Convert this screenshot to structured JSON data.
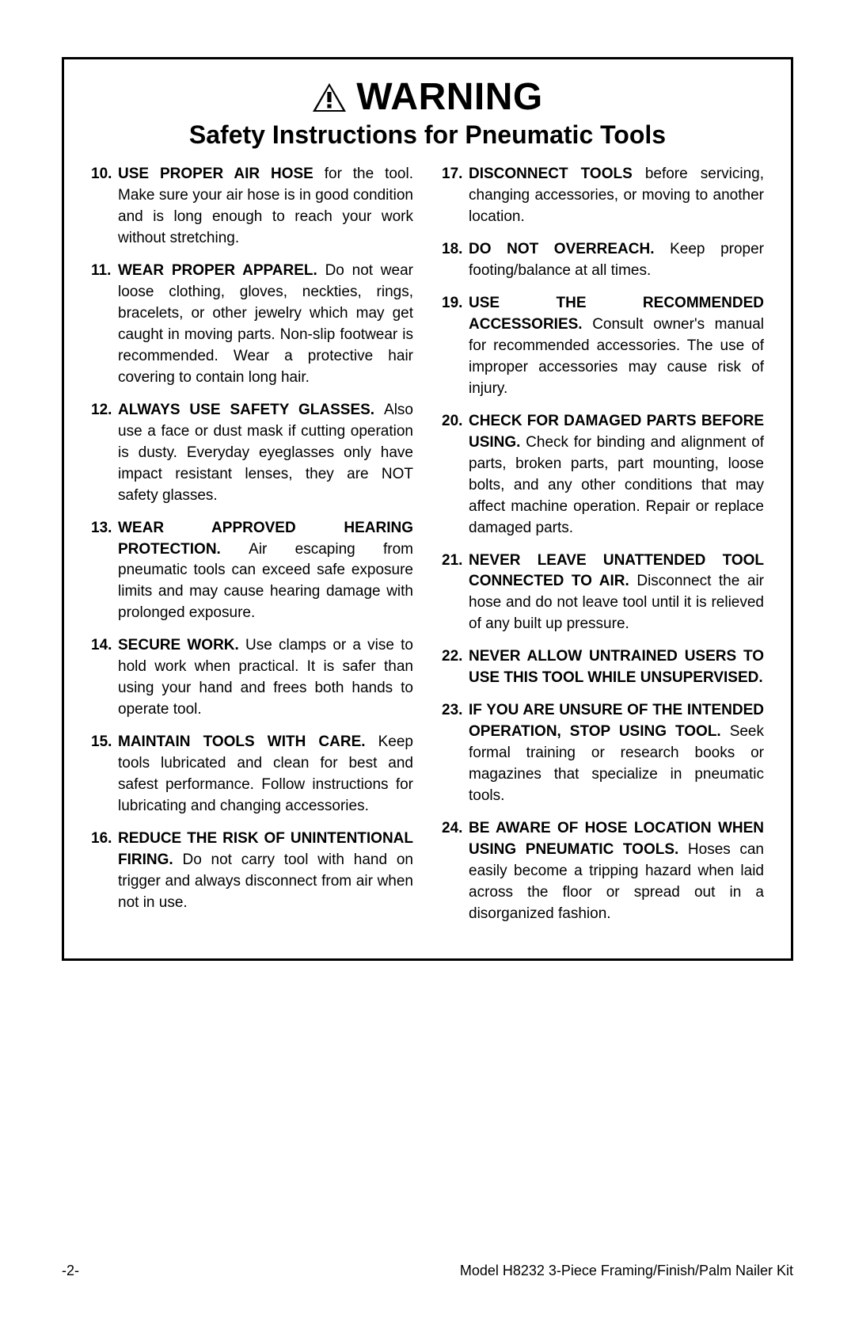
{
  "colors": {
    "text": "#000000",
    "background": "#ffffff",
    "border": "#000000"
  },
  "typography": {
    "body_fontsize_pt": 14,
    "title_fontsize_pt": 36,
    "subtitle_fontsize_pt": 24,
    "line_height": 1.42,
    "font_family": "Arial, Helvetica, sans-serif"
  },
  "header": {
    "warning_label": "WARNING",
    "subtitle": "Safety Instructions for Pneumatic Tools"
  },
  "left_items": [
    {
      "num": "10.",
      "lead": "USE PROPER AIR HOSE ",
      "rest": "for the tool. Make sure your air hose is in good condition and is long enough to reach your work without stretching."
    },
    {
      "num": "11.",
      "lead": "WEAR PROPER APPAREL. ",
      "rest": "Do not wear loose clothing, gloves, neckties, rings, bracelets, or other jewelry which may get caught in moving parts. Non-slip footwear is recommended. Wear a protective hair covering to contain long hair."
    },
    {
      "num": "12.",
      "lead": "ALWAYS USE SAFETY GLASSES. ",
      "rest": "Also use a face or dust mask if cutting operation is dusty. Everyday eyeglasses only have impact resistant lenses, they are NOT safety glasses."
    },
    {
      "num": "13.",
      "lead": "WEAR APPROVED HEARING PROTECTION. ",
      "rest": "Air escaping from pneumatic tools can exceed safe exposure limits and may cause hearing damage with prolonged exposure."
    },
    {
      "num": "14.",
      "lead": "SECURE WORK. ",
      "rest": "Use clamps or a vise to hold work when practical. It is safer than using your hand and frees both hands to operate tool."
    },
    {
      "num": "15.",
      "lead": "MAINTAIN TOOLS WITH CARE. ",
      "rest": "Keep tools lubricated and clean for best and safest performance. Follow instructions for lubricating and changing accessories."
    },
    {
      "num": "16.",
      "lead": "REDUCE THE RISK OF UNINTENTIONAL FIRING. ",
      "rest": "Do not carry tool with hand on trigger and always disconnect from air when not in use."
    }
  ],
  "right_items": [
    {
      "num": "17.",
      "lead": "DISCONNECT TOOLS ",
      "rest": "before servicing, changing accessories, or moving to another location."
    },
    {
      "num": "18.",
      "lead": "DO NOT OVERREACH. ",
      "rest": "Keep proper footing/balance at all times."
    },
    {
      "num": "19.",
      "lead": "USE THE RECOMMENDED ACCESSORIES. ",
      "rest": "Consult owner's manual for recommended accessories. The use of improper accessories may cause risk of injury."
    },
    {
      "num": "20.",
      "lead": "CHECK FOR DAMAGED PARTS BEFORE USING. ",
      "rest": "Check for binding and alignment of parts, broken parts, part mounting, loose bolts, and any other conditions that may affect machine operation. Repair or replace damaged parts."
    },
    {
      "num": "21.",
      "lead": "NEVER LEAVE UNATTENDED TOOL CONNECTED TO AIR. ",
      "rest": "Disconnect the air hose and do not leave tool until it is relieved of any built up pressure."
    },
    {
      "num": "22.",
      "lead": "NEVER ALLOW UNTRAINED USERS TO USE THIS TOOL WHILE UNSUPERVISED.",
      "rest": ""
    },
    {
      "num": "23.",
      "lead": "IF YOU ARE UNSURE OF THE INTENDED OPERATION, STOP USING TOOL. ",
      "rest": "Seek formal training or research books or magazines that specialize in pneumatic tools."
    },
    {
      "num": "24.",
      "lead": "BE AWARE OF HOSE LOCATION WHEN USING PNEUMATIC TOOLS. ",
      "rest": "Hoses can easily become a tripping hazard when laid across the floor or spread out in a disorganized fashion."
    }
  ],
  "footer": {
    "page_number": "-2-",
    "model_line": "Model H8232  3-Piece Framing/Finish/Palm Nailer Kit"
  }
}
